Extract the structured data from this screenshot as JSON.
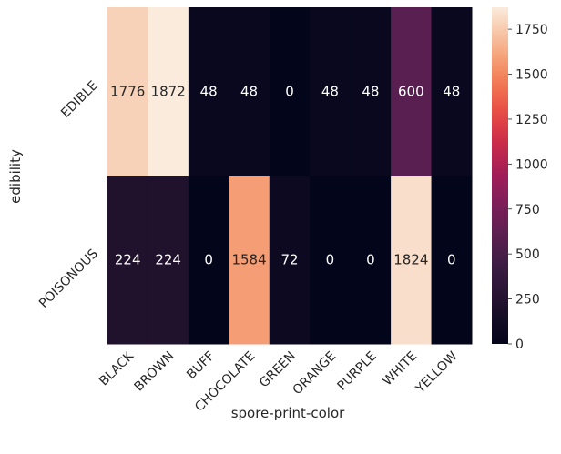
{
  "chart_data": {
    "type": "heatmap",
    "title": "",
    "xlabel": "spore-print-color",
    "ylabel": "edibility",
    "x_categories": [
      "BLACK",
      "BROWN",
      "BUFF",
      "CHOCOLATE",
      "GREEN",
      "ORANGE",
      "PURPLE",
      "WHITE",
      "YELLOW"
    ],
    "y_categories": [
      "EDIBLE",
      "POISONOUS"
    ],
    "values": [
      [
        1776,
        1872,
        48,
        48,
        0,
        48,
        48,
        600,
        48
      ],
      [
        224,
        224,
        0,
        1584,
        72,
        0,
        0,
        1824,
        0
      ]
    ],
    "annotations": true,
    "colormap": "rocket",
    "colorbar": {
      "range": [
        0,
        1872
      ],
      "ticks": [
        0,
        250,
        500,
        750,
        1000,
        1250,
        1500,
        1750
      ],
      "position": "right"
    },
    "grid": false,
    "x_tick_rotation": 45,
    "y_tick_rotation": 45
  }
}
